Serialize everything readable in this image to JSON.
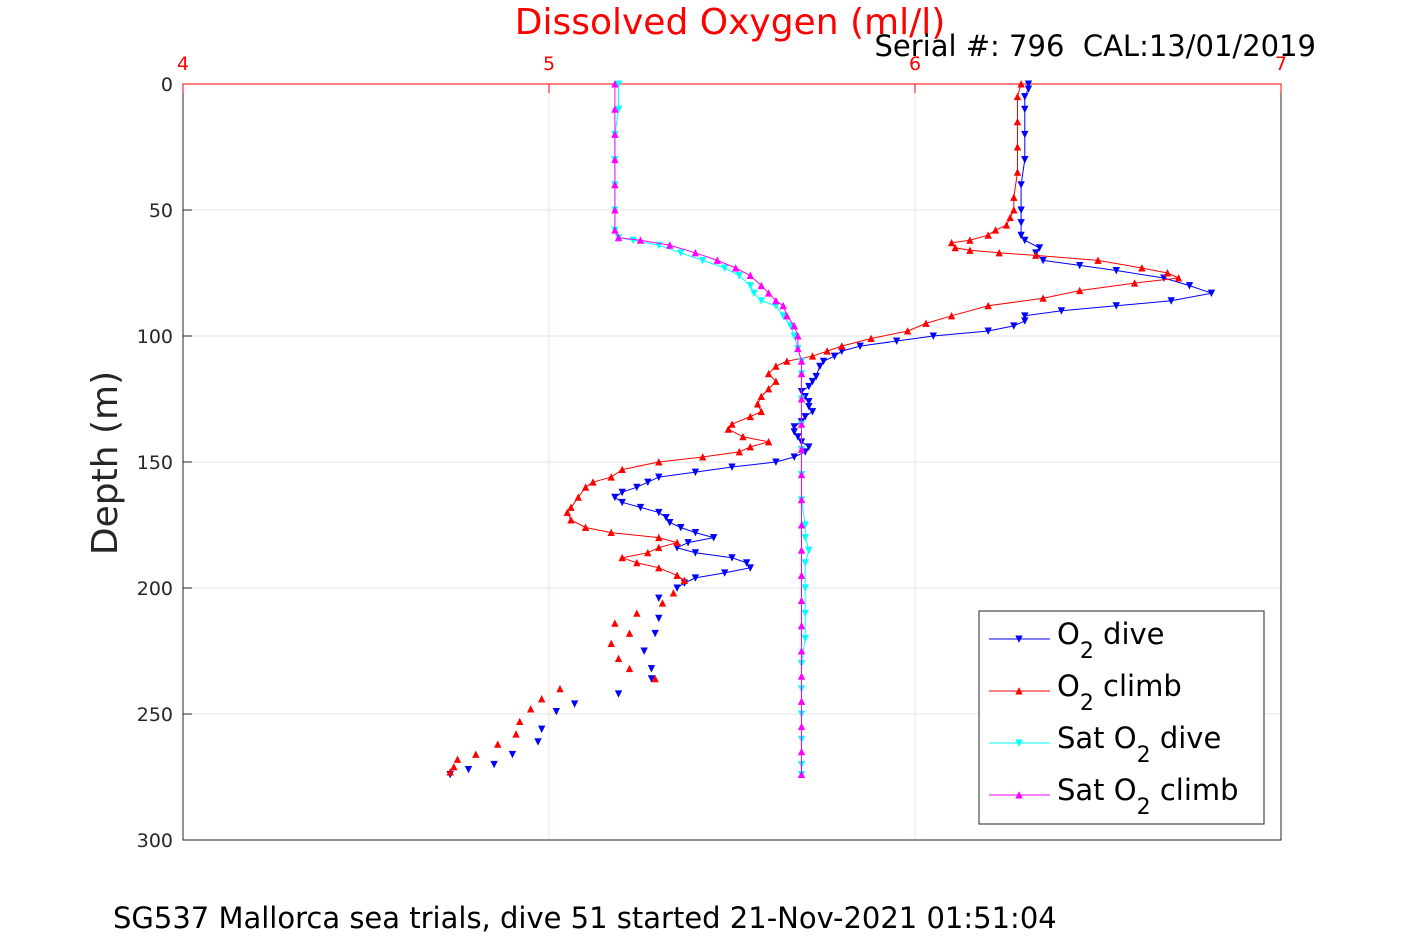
{
  "chart_data": {
    "type": "line",
    "title": "Dissolved Oxygen (ml/l)",
    "title_color": "#ff0000",
    "serial_text": "Serial #: 796  CAL:13/01/2019",
    "footer": "SG537 Mallorca sea trials, dive 51 started 21-Nov-2021 01:51:04",
    "ylabel": "Depth (m)",
    "xlabel": "",
    "xlim": [
      4,
      7
    ],
    "ylim": [
      0,
      300
    ],
    "y_reversed": true,
    "x_axis_position": "top",
    "x_tick_color": "#ff0000",
    "x_ticks": [
      "4",
      "5",
      "6",
      "7"
    ],
    "y_ticks": [
      "0",
      "50",
      "100",
      "150",
      "200",
      "250",
      "300"
    ],
    "grid": true,
    "legend_position": "bottom-right",
    "legend": [
      {
        "pre": "O",
        "sub": "2",
        "post": " dive",
        "color": "#0000ff",
        "marker": "down"
      },
      {
        "pre": "O",
        "sub": "2",
        "post": " climb",
        "color": "#ff0000",
        "marker": "up"
      },
      {
        "pre": "Sat O",
        "sub": "2",
        "post": " dive",
        "color": "#00ffff",
        "marker": "down"
      },
      {
        "pre": "Sat O",
        "sub": "2",
        "post": " climb",
        "color": "#ff00ff",
        "marker": "up"
      }
    ],
    "series": [
      {
        "name": "O2 dive",
        "color": "#0000ff",
        "marker": "down",
        "points": [
          [
            6.31,
            0
          ],
          [
            6.31,
            2
          ],
          [
            6.3,
            5
          ],
          [
            6.3,
            10
          ],
          [
            6.3,
            20
          ],
          [
            6.3,
            30
          ],
          [
            6.29,
            40
          ],
          [
            6.29,
            50
          ],
          [
            6.29,
            55
          ],
          [
            6.29,
            60
          ],
          [
            6.3,
            62
          ],
          [
            6.34,
            65
          ],
          [
            6.33,
            67
          ],
          [
            6.35,
            70
          ],
          [
            6.45,
            72
          ],
          [
            6.55,
            74
          ],
          [
            6.68,
            77
          ],
          [
            6.75,
            80
          ],
          [
            6.81,
            83
          ],
          [
            6.7,
            86
          ],
          [
            6.55,
            88
          ],
          [
            6.4,
            90
          ],
          [
            6.3,
            92
          ],
          [
            6.3,
            94
          ],
          [
            6.27,
            96
          ],
          [
            6.2,
            98
          ],
          [
            6.05,
            100
          ],
          [
            5.95,
            102
          ],
          [
            5.85,
            104
          ],
          [
            5.8,
            106
          ],
          [
            5.78,
            108
          ],
          [
            5.75,
            110
          ],
          [
            5.74,
            112
          ],
          [
            5.73,
            116
          ],
          [
            5.72,
            118
          ],
          [
            5.71,
            120
          ],
          [
            5.69,
            122
          ],
          [
            5.7,
            124
          ],
          [
            5.71,
            126
          ],
          [
            5.71,
            128
          ],
          [
            5.72,
            130
          ],
          [
            5.7,
            132
          ],
          [
            5.69,
            134
          ],
          [
            5.67,
            136
          ],
          [
            5.67,
            138
          ],
          [
            5.68,
            140
          ],
          [
            5.69,
            142
          ],
          [
            5.71,
            144
          ],
          [
            5.7,
            146
          ],
          [
            5.67,
            148
          ],
          [
            5.62,
            150
          ],
          [
            5.5,
            152
          ],
          [
            5.4,
            154
          ],
          [
            5.3,
            156
          ],
          [
            5.27,
            158
          ],
          [
            5.24,
            160
          ],
          [
            5.2,
            162
          ],
          [
            5.18,
            164
          ],
          [
            5.2,
            166
          ],
          [
            5.25,
            168
          ],
          [
            5.3,
            170
          ],
          [
            5.32,
            172
          ],
          [
            5.33,
            174
          ],
          [
            5.36,
            176
          ],
          [
            5.4,
            178
          ],
          [
            5.45,
            180
          ],
          [
            5.38,
            182
          ],
          [
            5.35,
            184
          ],
          [
            5.4,
            186
          ],
          [
            5.5,
            188
          ],
          [
            5.54,
            190
          ],
          [
            5.55,
            192
          ],
          [
            5.48,
            194
          ],
          [
            5.4,
            196
          ],
          [
            5.37,
            198
          ],
          [
            5.35,
            200
          ]
        ],
        "dots": [
          [
            5.3,
            204
          ],
          [
            5.3,
            212
          ],
          [
            5.29,
            218
          ],
          [
            5.26,
            225
          ],
          [
            5.28,
            232
          ],
          [
            5.28,
            236
          ],
          [
            5.19,
            242
          ],
          [
            5.07,
            246
          ],
          [
            5.02,
            249
          ],
          [
            4.98,
            256
          ],
          [
            4.97,
            261
          ],
          [
            4.9,
            266
          ],
          [
            4.85,
            270
          ],
          [
            4.78,
            272
          ],
          [
            4.73,
            274
          ]
        ]
      },
      {
        "name": "O2 climb",
        "color": "#ff0000",
        "marker": "up",
        "points": [
          [
            6.29,
            0
          ],
          [
            6.28,
            5
          ],
          [
            6.28,
            15
          ],
          [
            6.28,
            25
          ],
          [
            6.28,
            35
          ],
          [
            6.27,
            45
          ],
          [
            6.27,
            50
          ],
          [
            6.26,
            53
          ],
          [
            6.25,
            56
          ],
          [
            6.22,
            58
          ],
          [
            6.2,
            60
          ],
          [
            6.15,
            62
          ],
          [
            6.1,
            63
          ],
          [
            6.11,
            65
          ],
          [
            6.15,
            66
          ],
          [
            6.23,
            67
          ],
          [
            6.33,
            68
          ],
          [
            6.5,
            70
          ],
          [
            6.62,
            73
          ],
          [
            6.69,
            75
          ],
          [
            6.72,
            77
          ],
          [
            6.6,
            79
          ],
          [
            6.45,
            82
          ],
          [
            6.35,
            85
          ],
          [
            6.2,
            88
          ],
          [
            6.1,
            92
          ],
          [
            6.03,
            95
          ],
          [
            5.98,
            98
          ],
          [
            5.88,
            101
          ],
          [
            5.8,
            104
          ],
          [
            5.76,
            106
          ],
          [
            5.72,
            108
          ],
          [
            5.65,
            110
          ],
          [
            5.62,
            112
          ],
          [
            5.6,
            115
          ],
          [
            5.62,
            118
          ],
          [
            5.6,
            121
          ],
          [
            5.58,
            124
          ],
          [
            5.57,
            127
          ],
          [
            5.58,
            130
          ],
          [
            5.55,
            132
          ],
          [
            5.5,
            135
          ],
          [
            5.49,
            137
          ],
          [
            5.53,
            140
          ],
          [
            5.6,
            142
          ],
          [
            5.55,
            144
          ],
          [
            5.52,
            146
          ],
          [
            5.42,
            148
          ],
          [
            5.3,
            150
          ],
          [
            5.2,
            153
          ],
          [
            5.17,
            156
          ],
          [
            5.12,
            158
          ],
          [
            5.1,
            160
          ],
          [
            5.08,
            164
          ],
          [
            5.06,
            168
          ],
          [
            5.05,
            170
          ],
          [
            5.06,
            173
          ],
          [
            5.1,
            176
          ],
          [
            5.17,
            178
          ],
          [
            5.3,
            180
          ],
          [
            5.35,
            182
          ],
          [
            5.3,
            184
          ],
          [
            5.27,
            186
          ],
          [
            5.2,
            188
          ],
          [
            5.24,
            190
          ],
          [
            5.3,
            192
          ],
          [
            5.35,
            195
          ],
          [
            5.37,
            197
          ]
        ],
        "dots": [
          [
            5.34,
            202
          ],
          [
            5.31,
            206
          ],
          [
            5.24,
            210
          ],
          [
            5.18,
            214
          ],
          [
            5.22,
            218
          ],
          [
            5.17,
            222
          ],
          [
            5.19,
            228
          ],
          [
            5.22,
            232
          ],
          [
            5.29,
            236
          ],
          [
            5.03,
            240
          ],
          [
            4.98,
            244
          ],
          [
            4.95,
            248
          ],
          [
            4.92,
            253
          ],
          [
            4.91,
            258
          ],
          [
            4.86,
            262
          ],
          [
            4.8,
            266
          ],
          [
            4.75,
            268
          ],
          [
            4.74,
            271
          ],
          [
            4.73,
            273
          ]
        ]
      },
      {
        "name": "Sat O2 dive",
        "color": "#00ffff",
        "marker": "down",
        "points": [
          [
            5.19,
            0
          ],
          [
            5.19,
            10
          ],
          [
            5.18,
            20
          ],
          [
            5.18,
            30
          ],
          [
            5.18,
            40
          ],
          [
            5.18,
            50
          ],
          [
            5.18,
            58
          ],
          [
            5.19,
            61
          ],
          [
            5.23,
            62
          ],
          [
            5.3,
            64
          ],
          [
            5.36,
            67
          ],
          [
            5.42,
            70
          ],
          [
            5.48,
            73
          ],
          [
            5.52,
            76
          ],
          [
            5.55,
            80
          ],
          [
            5.56,
            83
          ],
          [
            5.58,
            86
          ],
          [
            5.62,
            88
          ],
          [
            5.64,
            92
          ],
          [
            5.66,
            96
          ],
          [
            5.67,
            100
          ],
          [
            5.68,
            105
          ],
          [
            5.69,
            110
          ],
          [
            5.69,
            115
          ],
          [
            5.69,
            125
          ],
          [
            5.69,
            135
          ],
          [
            5.69,
            145
          ],
          [
            5.69,
            155
          ],
          [
            5.69,
            165
          ],
          [
            5.7,
            175
          ],
          [
            5.7,
            180
          ],
          [
            5.71,
            185
          ],
          [
            5.7,
            190
          ],
          [
            5.7,
            200
          ],
          [
            5.7,
            210
          ],
          [
            5.7,
            220
          ],
          [
            5.69,
            230
          ],
          [
            5.69,
            240
          ],
          [
            5.69,
            250
          ],
          [
            5.69,
            260
          ],
          [
            5.69,
            270
          ],
          [
            5.69,
            274
          ]
        ]
      },
      {
        "name": "Sat O2 climb",
        "color": "#ff00ff",
        "marker": "up",
        "points": [
          [
            5.18,
            0
          ],
          [
            5.18,
            10
          ],
          [
            5.18,
            20
          ],
          [
            5.18,
            30
          ],
          [
            5.18,
            40
          ],
          [
            5.18,
            50
          ],
          [
            5.18,
            58
          ],
          [
            5.19,
            61
          ],
          [
            5.25,
            62
          ],
          [
            5.33,
            64
          ],
          [
            5.4,
            67
          ],
          [
            5.46,
            70
          ],
          [
            5.51,
            73
          ],
          [
            5.55,
            76
          ],
          [
            5.58,
            80
          ],
          [
            5.6,
            83
          ],
          [
            5.62,
            86
          ],
          [
            5.64,
            88
          ],
          [
            5.65,
            92
          ],
          [
            5.67,
            96
          ],
          [
            5.68,
            100
          ],
          [
            5.68,
            105
          ],
          [
            5.69,
            110
          ],
          [
            5.69,
            115
          ],
          [
            5.69,
            125
          ],
          [
            5.69,
            135
          ],
          [
            5.69,
            145
          ],
          [
            5.69,
            155
          ],
          [
            5.69,
            165
          ],
          [
            5.69,
            175
          ],
          [
            5.69,
            185
          ],
          [
            5.69,
            195
          ],
          [
            5.69,
            205
          ],
          [
            5.69,
            215
          ],
          [
            5.69,
            225
          ],
          [
            5.69,
            235
          ],
          [
            5.69,
            245
          ],
          [
            5.69,
            255
          ],
          [
            5.69,
            265
          ],
          [
            5.69,
            274
          ]
        ]
      }
    ]
  }
}
